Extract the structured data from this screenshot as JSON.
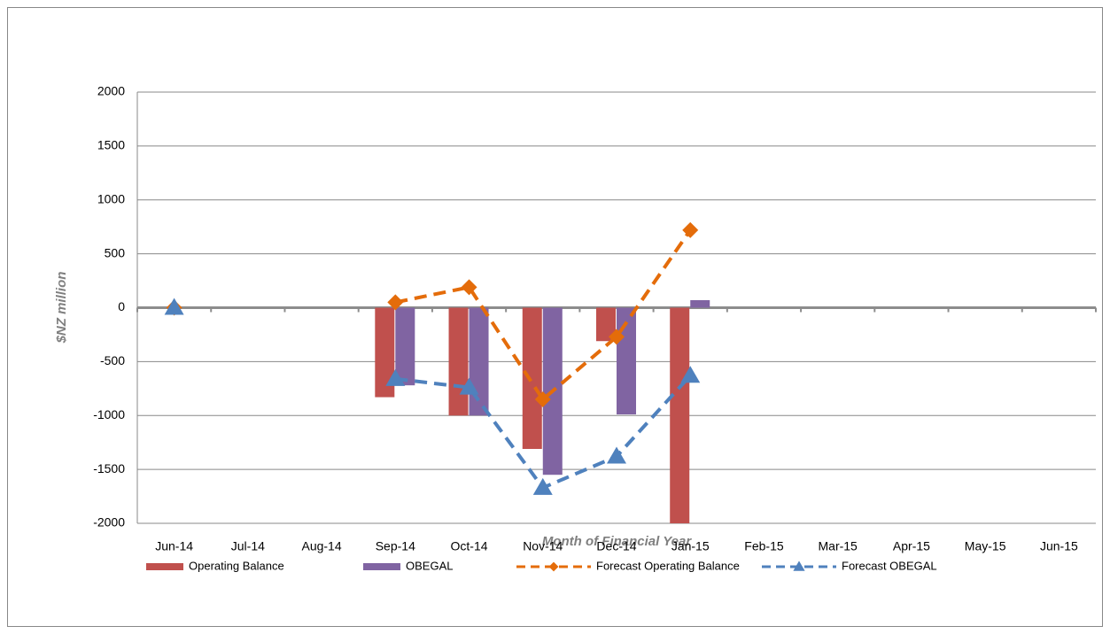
{
  "chart_data": {
    "type": "bar_line",
    "y_axis_label": "$NZ million",
    "x_axis_label": "Month of Financial Year",
    "categories": [
      "Jun-14",
      "Jul-14",
      "Aug-14",
      "Sep-14",
      "Oct-14",
      "Nov-14",
      "Dec-14",
      "Jan-15",
      "Feb-15",
      "Mar-15",
      "Apr-15",
      "May-15",
      "Jun-15"
    ],
    "series": [
      {
        "name": "Operating Balance",
        "kind": "bar",
        "color": "#c0504d",
        "values": [
          null,
          null,
          null,
          -830,
          -1000,
          -1310,
          -310,
          -2000,
          null,
          null,
          null,
          null,
          null
        ]
      },
      {
        "name": "OBEGAL",
        "kind": "bar",
        "color": "#8064a2",
        "values": [
          null,
          null,
          null,
          -720,
          -1000,
          -1550,
          -990,
          70,
          null,
          null,
          null,
          null,
          null
        ]
      },
      {
        "name": "Forecast Operating Balance",
        "kind": "line",
        "marker": "diamond",
        "color": "#e46c0a",
        "values": [
          0,
          null,
          null,
          50,
          190,
          -850,
          -270,
          720,
          null,
          null,
          null,
          null,
          null
        ]
      },
      {
        "name": "Forecast OBEGAL",
        "kind": "line",
        "marker": "triangle",
        "color": "#4f81bd",
        "values": [
          0,
          null,
          null,
          -660,
          -740,
          -1670,
          -1380,
          -630,
          null,
          null,
          null,
          null,
          null
        ]
      }
    ],
    "ylim": [
      -2000,
      2000
    ],
    "yticks": [
      -2000,
      -1500,
      -1000,
      -500,
      0,
      500,
      1000,
      1500,
      2000
    ],
    "grid": true,
    "legend": "bottom"
  }
}
